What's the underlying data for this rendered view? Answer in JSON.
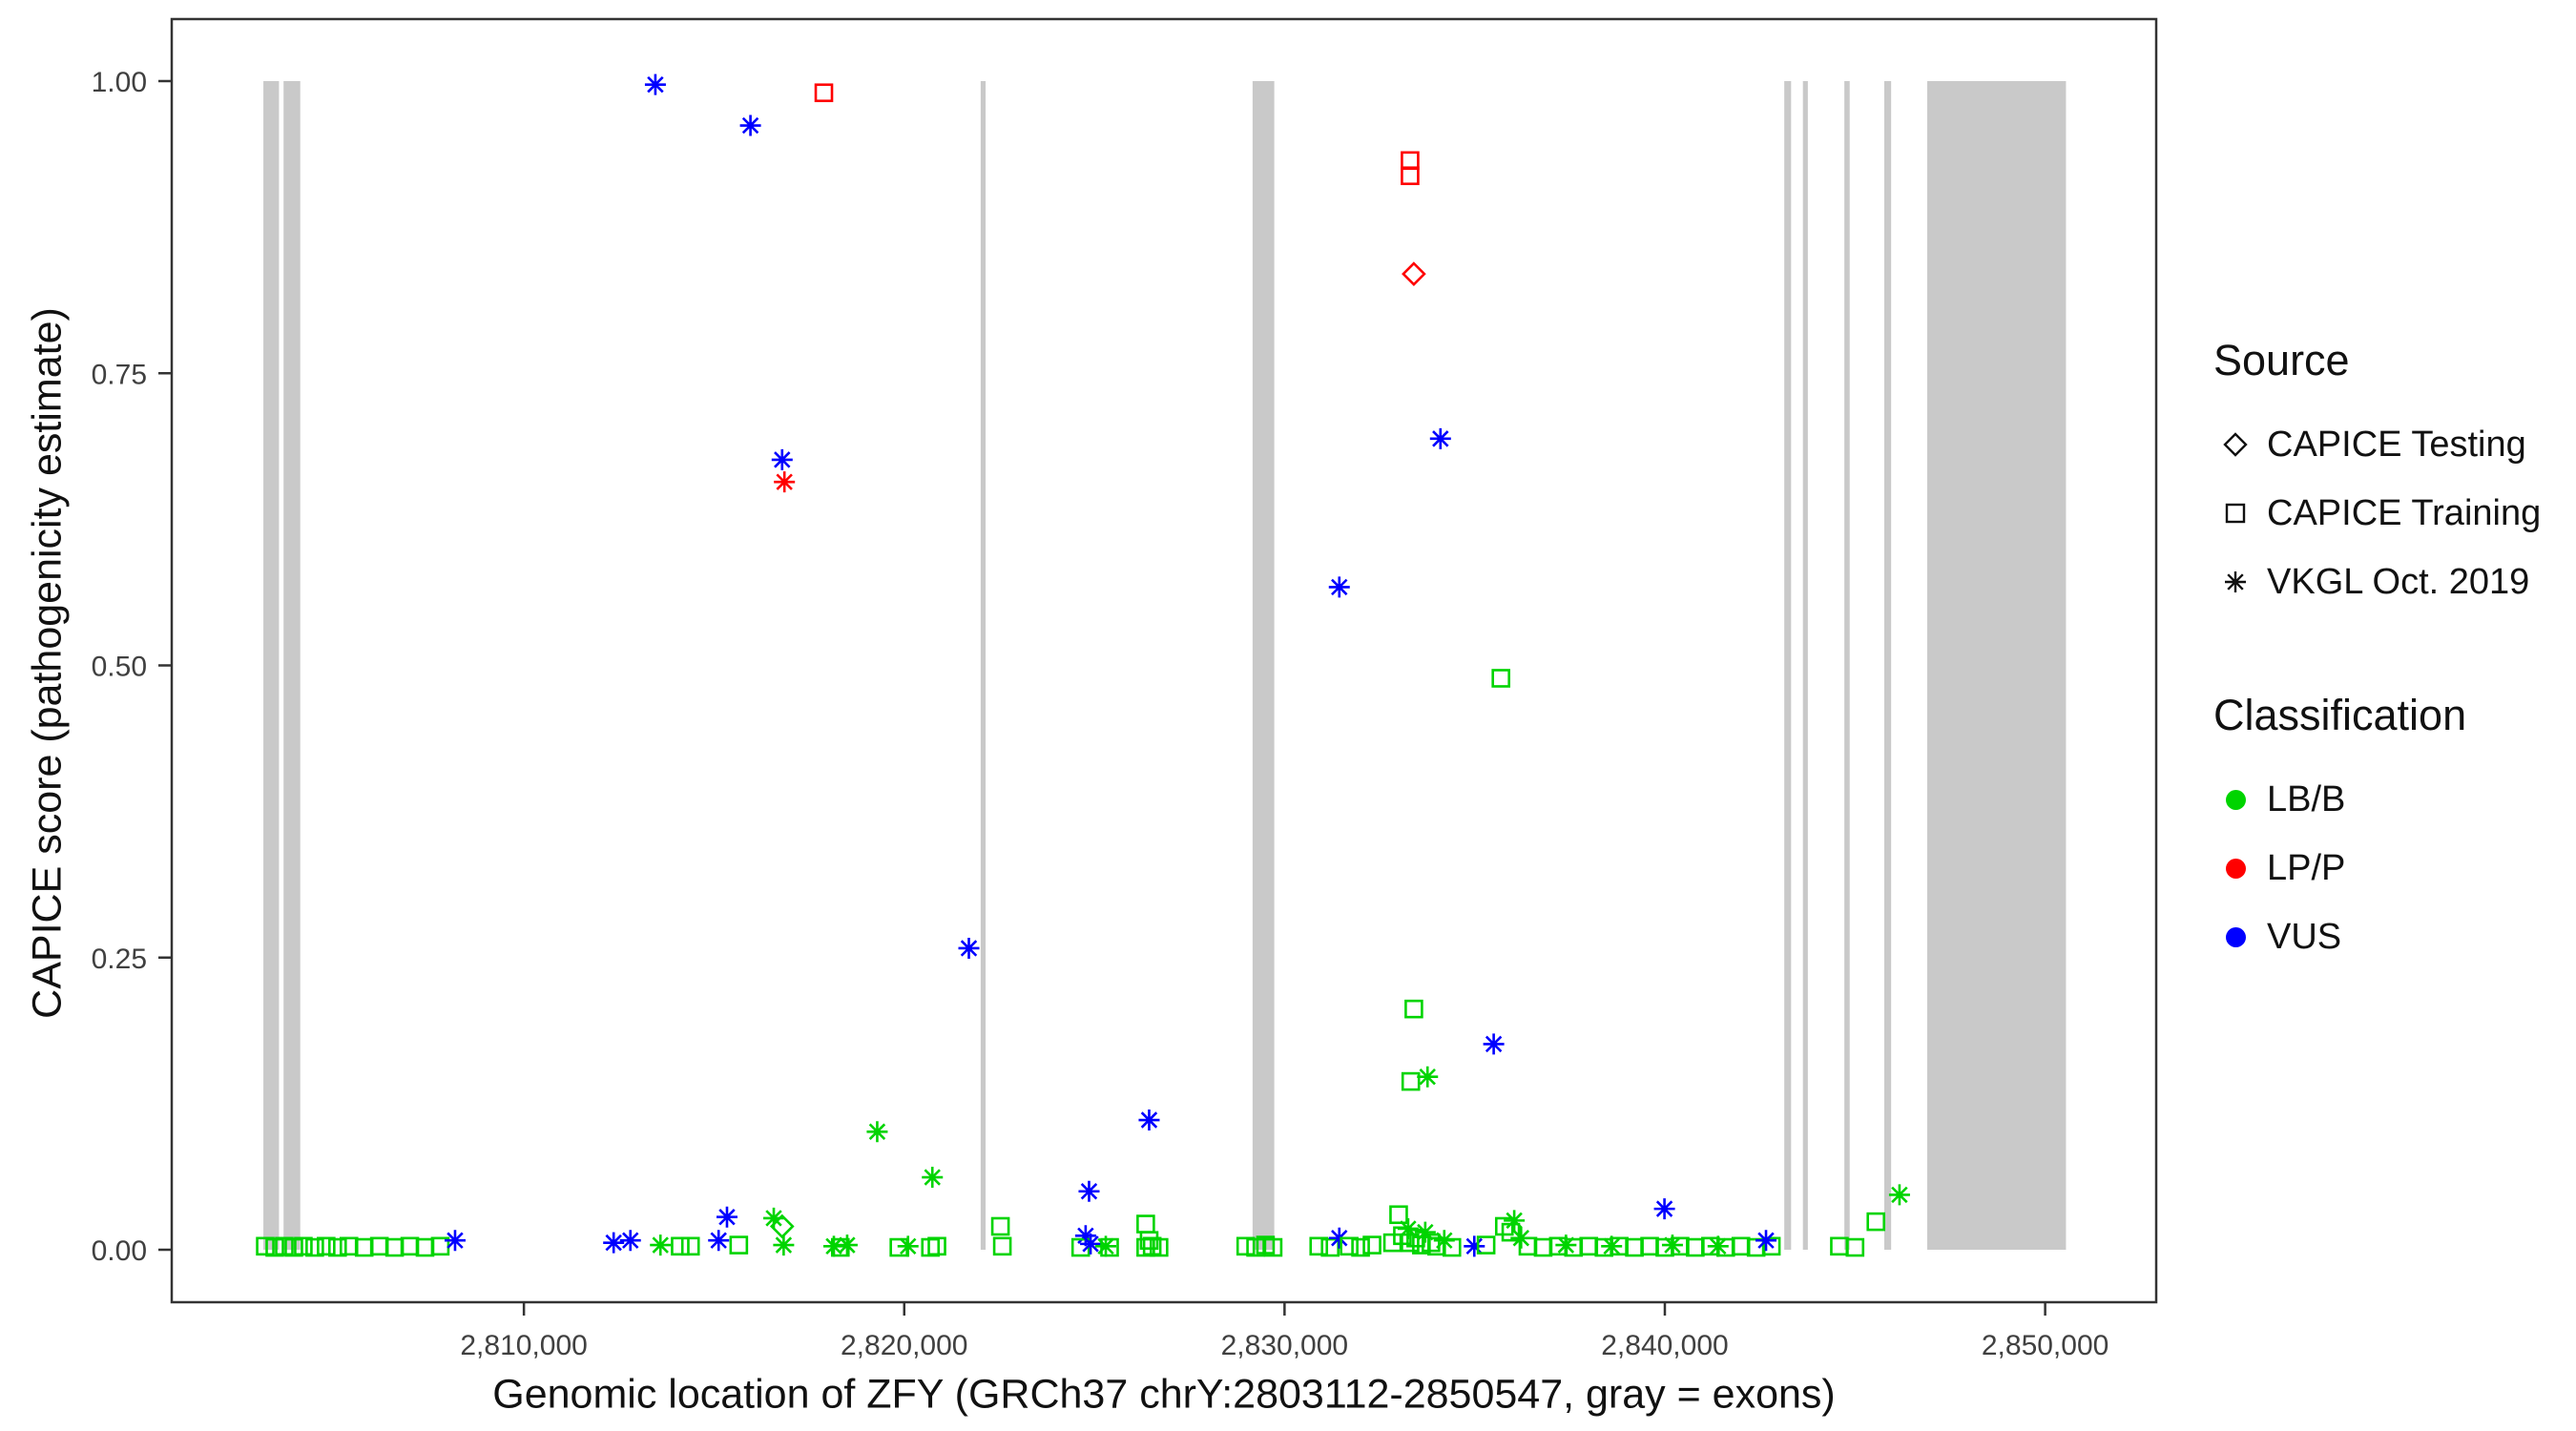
{
  "legend": {
    "source": {
      "title": "Source",
      "items": [
        {
          "label": "CAPICE Testing",
          "marker": "diamond"
        },
        {
          "label": "CAPICE Training",
          "marker": "square"
        },
        {
          "label": "VKGL Oct. 2019",
          "marker": "asterisk"
        }
      ]
    },
    "classification": {
      "title": "Classification",
      "items": [
        {
          "label": "LB/B",
          "color_key": "LB/B"
        },
        {
          "label": "LP/P",
          "color_key": "LP/P"
        },
        {
          "label": "VUS",
          "color_key": "VUS"
        }
      ]
    }
  },
  "chart_data": {
    "type": "scatter",
    "title": "",
    "xlabel": "Genomic location of ZFY (GRCh37 chrY:2803112-2850547, gray = exons)",
    "ylabel": "CAPICE score (pathogenicity estimate)",
    "x_domain": [
      2800740,
      2852920
    ],
    "y_domain": [
      0,
      1
    ],
    "grid": false,
    "legend_position": "right",
    "x_ticks": [
      {
        "v": 2810000,
        "label": "2,810,000"
      },
      {
        "v": 2820000,
        "label": "2,820,000"
      },
      {
        "v": 2830000,
        "label": "2,830,000"
      },
      {
        "v": 2840000,
        "label": "2,840,000"
      },
      {
        "v": 2850000,
        "label": "2,850,000"
      }
    ],
    "y_ticks": [
      {
        "v": 0.0,
        "label": "0.00"
      },
      {
        "v": 0.25,
        "label": "0.25"
      },
      {
        "v": 0.5,
        "label": "0.50"
      },
      {
        "v": 0.75,
        "label": "0.75"
      },
      {
        "v": 1.0,
        "label": "1.00"
      }
    ],
    "exon_color": "#c9c9c9",
    "colors": {
      "LB/B": "#00d400",
      "LP/P": "#ff0000",
      "VUS": "#0000ff"
    },
    "source_codes": {
      "T": "CAPICE Testing",
      "Q": "CAPICE Training",
      "V": "VKGL Oct. 2019"
    },
    "class_codes": {
      "B": "LB/B",
      "P": "LP/P",
      "U": "VUS"
    },
    "marker_by_source": {
      "T": "diamond",
      "Q": "square",
      "V": "asterisk"
    },
    "exons": [
      [
        2803150,
        2803560
      ],
      [
        2803680,
        2804120
      ],
      [
        2822010,
        2822140
      ],
      [
        2829160,
        2829730
      ],
      [
        2843140,
        2843320
      ],
      [
        2843630,
        2843760
      ],
      [
        2844720,
        2844860
      ],
      [
        2845770,
        2845950
      ],
      [
        2846900,
        2850547
      ]
    ],
    "points": [
      [
        2813457,
        0.997,
        "V",
        "U"
      ],
      [
        2815957,
        0.962,
        "V",
        "U"
      ],
      [
        2817887,
        0.99,
        "Q",
        "P"
      ],
      [
        2833300,
        0.932,
        "Q",
        "P"
      ],
      [
        2833300,
        0.919,
        "Q",
        "P"
      ],
      [
        2833400,
        0.835,
        "T",
        "P"
      ],
      [
        2834100,
        0.694,
        "V",
        "U"
      ],
      [
        2816790,
        0.676,
        "V",
        "U"
      ],
      [
        2816850,
        0.657,
        "V",
        "P"
      ],
      [
        2831440,
        0.567,
        "V",
        "U"
      ],
      [
        2835690,
        0.489,
        "Q",
        "B"
      ],
      [
        2821700,
        0.258,
        "V",
        "U"
      ],
      [
        2833400,
        0.206,
        "Q",
        "B"
      ],
      [
        2835500,
        0.176,
        "V",
        "U"
      ],
      [
        2833320,
        0.144,
        "Q",
        "B"
      ],
      [
        2833760,
        0.148,
        "V",
        "B"
      ],
      [
        2826440,
        0.111,
        "V",
        "U"
      ],
      [
        2819290,
        0.101,
        "V",
        "B"
      ],
      [
        2820740,
        0.062,
        "V",
        "B"
      ],
      [
        2824860,
        0.05,
        "V",
        "U"
      ],
      [
        2846170,
        0.047,
        "V",
        "B"
      ],
      [
        2839990,
        0.035,
        "V",
        "U"
      ],
      [
        2815340,
        0.028,
        "V",
        "U"
      ],
      [
        2816570,
        0.027,
        "V",
        "B"
      ],
      [
        2816790,
        0.02,
        "T",
        "B"
      ],
      [
        2845550,
        0.024,
        "Q",
        "B"
      ],
      [
        2822530,
        0.02,
        "Q",
        "B"
      ],
      [
        2824770,
        0.012,
        "V",
        "U"
      ],
      [
        2826350,
        0.022,
        "Q",
        "B"
      ],
      [
        2826440,
        0.008,
        "Q",
        "B"
      ],
      [
        2803200,
        0.003,
        "Q",
        "B"
      ],
      [
        2803450,
        0.002,
        "Q",
        "B"
      ],
      [
        2803700,
        0.003,
        "Q",
        "B"
      ],
      [
        2803950,
        0.002,
        "Q",
        "B"
      ],
      [
        2804200,
        0.003,
        "Q",
        "B"
      ],
      [
        2804500,
        0.002,
        "Q",
        "B"
      ],
      [
        2804800,
        0.003,
        "Q",
        "B"
      ],
      [
        2805100,
        0.002,
        "Q",
        "B"
      ],
      [
        2805400,
        0.003,
        "Q",
        "B"
      ],
      [
        2805800,
        0.002,
        "Q",
        "B"
      ],
      [
        2806200,
        0.003,
        "Q",
        "B"
      ],
      [
        2806600,
        0.002,
        "Q",
        "B"
      ],
      [
        2807000,
        0.003,
        "Q",
        "B"
      ],
      [
        2807400,
        0.002,
        "Q",
        "B"
      ],
      [
        2807800,
        0.003,
        "Q",
        "B"
      ],
      [
        2808190,
        0.008,
        "V",
        "U"
      ],
      [
        2812360,
        0.006,
        "V",
        "U"
      ],
      [
        2812800,
        0.008,
        "V",
        "U"
      ],
      [
        2813590,
        0.004,
        "V",
        "B"
      ],
      [
        2814110,
        0.003,
        "Q",
        "B"
      ],
      [
        2814380,
        0.003,
        "Q",
        "B"
      ],
      [
        2815120,
        0.008,
        "V",
        "U"
      ],
      [
        2815650,
        0.004,
        "Q",
        "B"
      ],
      [
        2816830,
        0.004,
        "V",
        "B"
      ],
      [
        2818150,
        0.003,
        "V",
        "B"
      ],
      [
        2818320,
        0.002,
        "Q",
        "B"
      ],
      [
        2818500,
        0.004,
        "V",
        "B"
      ],
      [
        2819860,
        0.002,
        "Q",
        "B"
      ],
      [
        2820100,
        0.003,
        "V",
        "B"
      ],
      [
        2820690,
        0.002,
        "Q",
        "B"
      ],
      [
        2820860,
        0.003,
        "Q",
        "B"
      ],
      [
        2822580,
        0.003,
        "Q",
        "B"
      ],
      [
        2824640,
        0.002,
        "Q",
        "B"
      ],
      [
        2824900,
        0.005,
        "V",
        "U"
      ],
      [
        2825300,
        0.003,
        "V",
        "B"
      ],
      [
        2825400,
        0.002,
        "Q",
        "B"
      ],
      [
        2826350,
        0.002,
        "Q",
        "B"
      ],
      [
        2826520,
        0.003,
        "Q",
        "B"
      ],
      [
        2826700,
        0.002,
        "Q",
        "B"
      ],
      [
        2828980,
        0.003,
        "Q",
        "B"
      ],
      [
        2829240,
        0.002,
        "Q",
        "B"
      ],
      [
        2829500,
        0.004,
        "Q",
        "B"
      ],
      [
        2829700,
        0.002,
        "Q",
        "B"
      ],
      [
        2830900,
        0.003,
        "Q",
        "B"
      ],
      [
        2831200,
        0.002,
        "Q",
        "B"
      ],
      [
        2831440,
        0.01,
        "V",
        "U"
      ],
      [
        2831700,
        0.003,
        "Q",
        "B"
      ],
      [
        2832000,
        0.002,
        "Q",
        "B"
      ],
      [
        2832300,
        0.004,
        "Q",
        "B"
      ],
      [
        2832840,
        0.006,
        "Q",
        "B"
      ],
      [
        2833000,
        0.03,
        "Q",
        "B"
      ],
      [
        2833100,
        0.012,
        "Q",
        "B"
      ],
      [
        2833250,
        0.018,
        "V",
        "B"
      ],
      [
        2833300,
        0.006,
        "Q",
        "B"
      ],
      [
        2833450,
        0.01,
        "Q",
        "B"
      ],
      [
        2833600,
        0.004,
        "Q",
        "B"
      ],
      [
        2833700,
        0.015,
        "V",
        "B"
      ],
      [
        2833850,
        0.006,
        "Q",
        "B"
      ],
      [
        2834000,
        0.003,
        "Q",
        "B"
      ],
      [
        2834200,
        0.008,
        "V",
        "B"
      ],
      [
        2834400,
        0.002,
        "Q",
        "B"
      ],
      [
        2834990,
        0.003,
        "V",
        "U"
      ],
      [
        2835300,
        0.004,
        "Q",
        "B"
      ],
      [
        2835780,
        0.02,
        "Q",
        "B"
      ],
      [
        2835950,
        0.015,
        "Q",
        "B"
      ],
      [
        2836040,
        0.025,
        "V",
        "B"
      ],
      [
        2836220,
        0.01,
        "V",
        "B"
      ],
      [
        2836400,
        0.003,
        "Q",
        "B"
      ],
      [
        2836800,
        0.002,
        "Q",
        "B"
      ],
      [
        2837200,
        0.003,
        "Q",
        "B"
      ],
      [
        2837600,
        0.002,
        "Q",
        "B"
      ],
      [
        2838000,
        0.003,
        "Q",
        "B"
      ],
      [
        2838400,
        0.002,
        "Q",
        "B"
      ],
      [
        2838800,
        0.003,
        "Q",
        "B"
      ],
      [
        2839200,
        0.002,
        "Q",
        "B"
      ],
      [
        2839600,
        0.003,
        "Q",
        "B"
      ],
      [
        2840000,
        0.002,
        "Q",
        "B"
      ],
      [
        2840400,
        0.003,
        "Q",
        "B"
      ],
      [
        2840800,
        0.002,
        "Q",
        "B"
      ],
      [
        2841200,
        0.003,
        "Q",
        "B"
      ],
      [
        2841600,
        0.002,
        "Q",
        "B"
      ],
      [
        2842000,
        0.003,
        "Q",
        "B"
      ],
      [
        2842400,
        0.002,
        "Q",
        "B"
      ],
      [
        2842800,
        0.003,
        "Q",
        "B"
      ],
      [
        2837400,
        0.004,
        "V",
        "B"
      ],
      [
        2838600,
        0.003,
        "V",
        "B"
      ],
      [
        2840200,
        0.004,
        "V",
        "B"
      ],
      [
        2841400,
        0.003,
        "V",
        "B"
      ],
      [
        2842660,
        0.008,
        "V",
        "U"
      ],
      [
        2844590,
        0.003,
        "Q",
        "B"
      ],
      [
        2845000,
        0.002,
        "Q",
        "B"
      ]
    ]
  }
}
